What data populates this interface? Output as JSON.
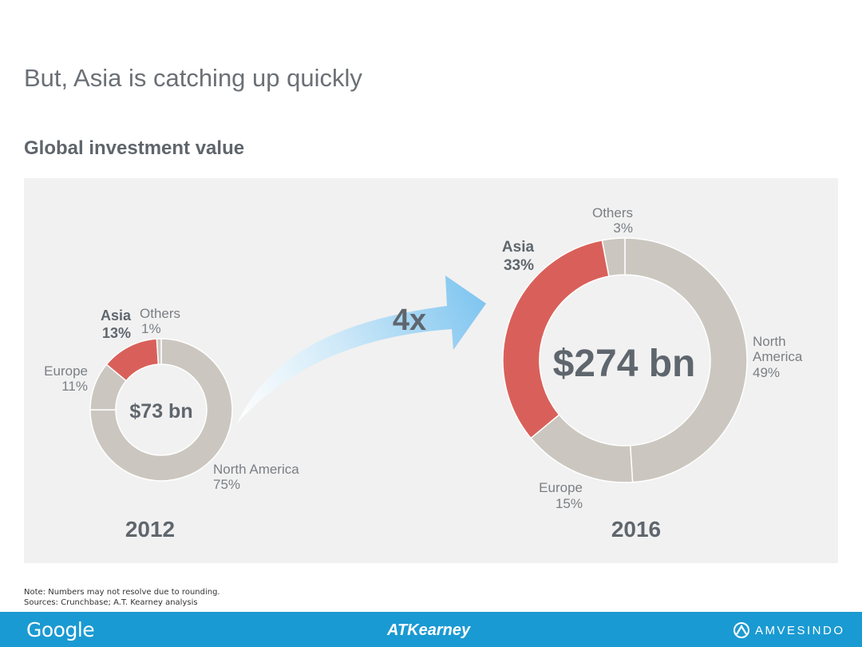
{
  "title": "But, Asia is catching up quickly",
  "subtitle": "Global investment value",
  "multiplier": "4x",
  "notes": [
    "Note: Numbers may not resolve due to rounding.",
    "Sources: Crunchbase; A.T. Kearney analysis"
  ],
  "footer": {
    "google": "Google",
    "atkearney": "ATKearney",
    "amvesindo": "AMVESINDO"
  },
  "colors": {
    "asia": "#d9605a",
    "other": "#cbc7c0",
    "panel": "#f1f1f1",
    "footer": "#1a9ad2",
    "arrow": "#8fcdf2"
  },
  "chart_data": [
    {
      "type": "pie",
      "variant": "donut",
      "year": "2012",
      "total_label": "$73 bn",
      "total_value_bn": 73,
      "slices": [
        {
          "name": "North America",
          "value": 75,
          "label": "75%",
          "highlight": false
        },
        {
          "name": "Europe",
          "value": 11,
          "label": "11%",
          "highlight": false
        },
        {
          "name": "Asia",
          "value": 13,
          "label": "13%",
          "highlight": true
        },
        {
          "name": "Others",
          "value": 1,
          "label": "1%",
          "highlight": false
        }
      ]
    },
    {
      "type": "pie",
      "variant": "donut",
      "year": "2016",
      "total_label": "$274 bn",
      "total_value_bn": 274,
      "slices": [
        {
          "name": "North America",
          "value": 49,
          "label": "49%",
          "highlight": false
        },
        {
          "name": "Europe",
          "value": 15,
          "label": "15%",
          "highlight": false
        },
        {
          "name": "Asia",
          "value": 33,
          "label": "33%",
          "highlight": true
        },
        {
          "name": "Others",
          "value": 3,
          "label": "3%",
          "highlight": false
        }
      ]
    }
  ]
}
